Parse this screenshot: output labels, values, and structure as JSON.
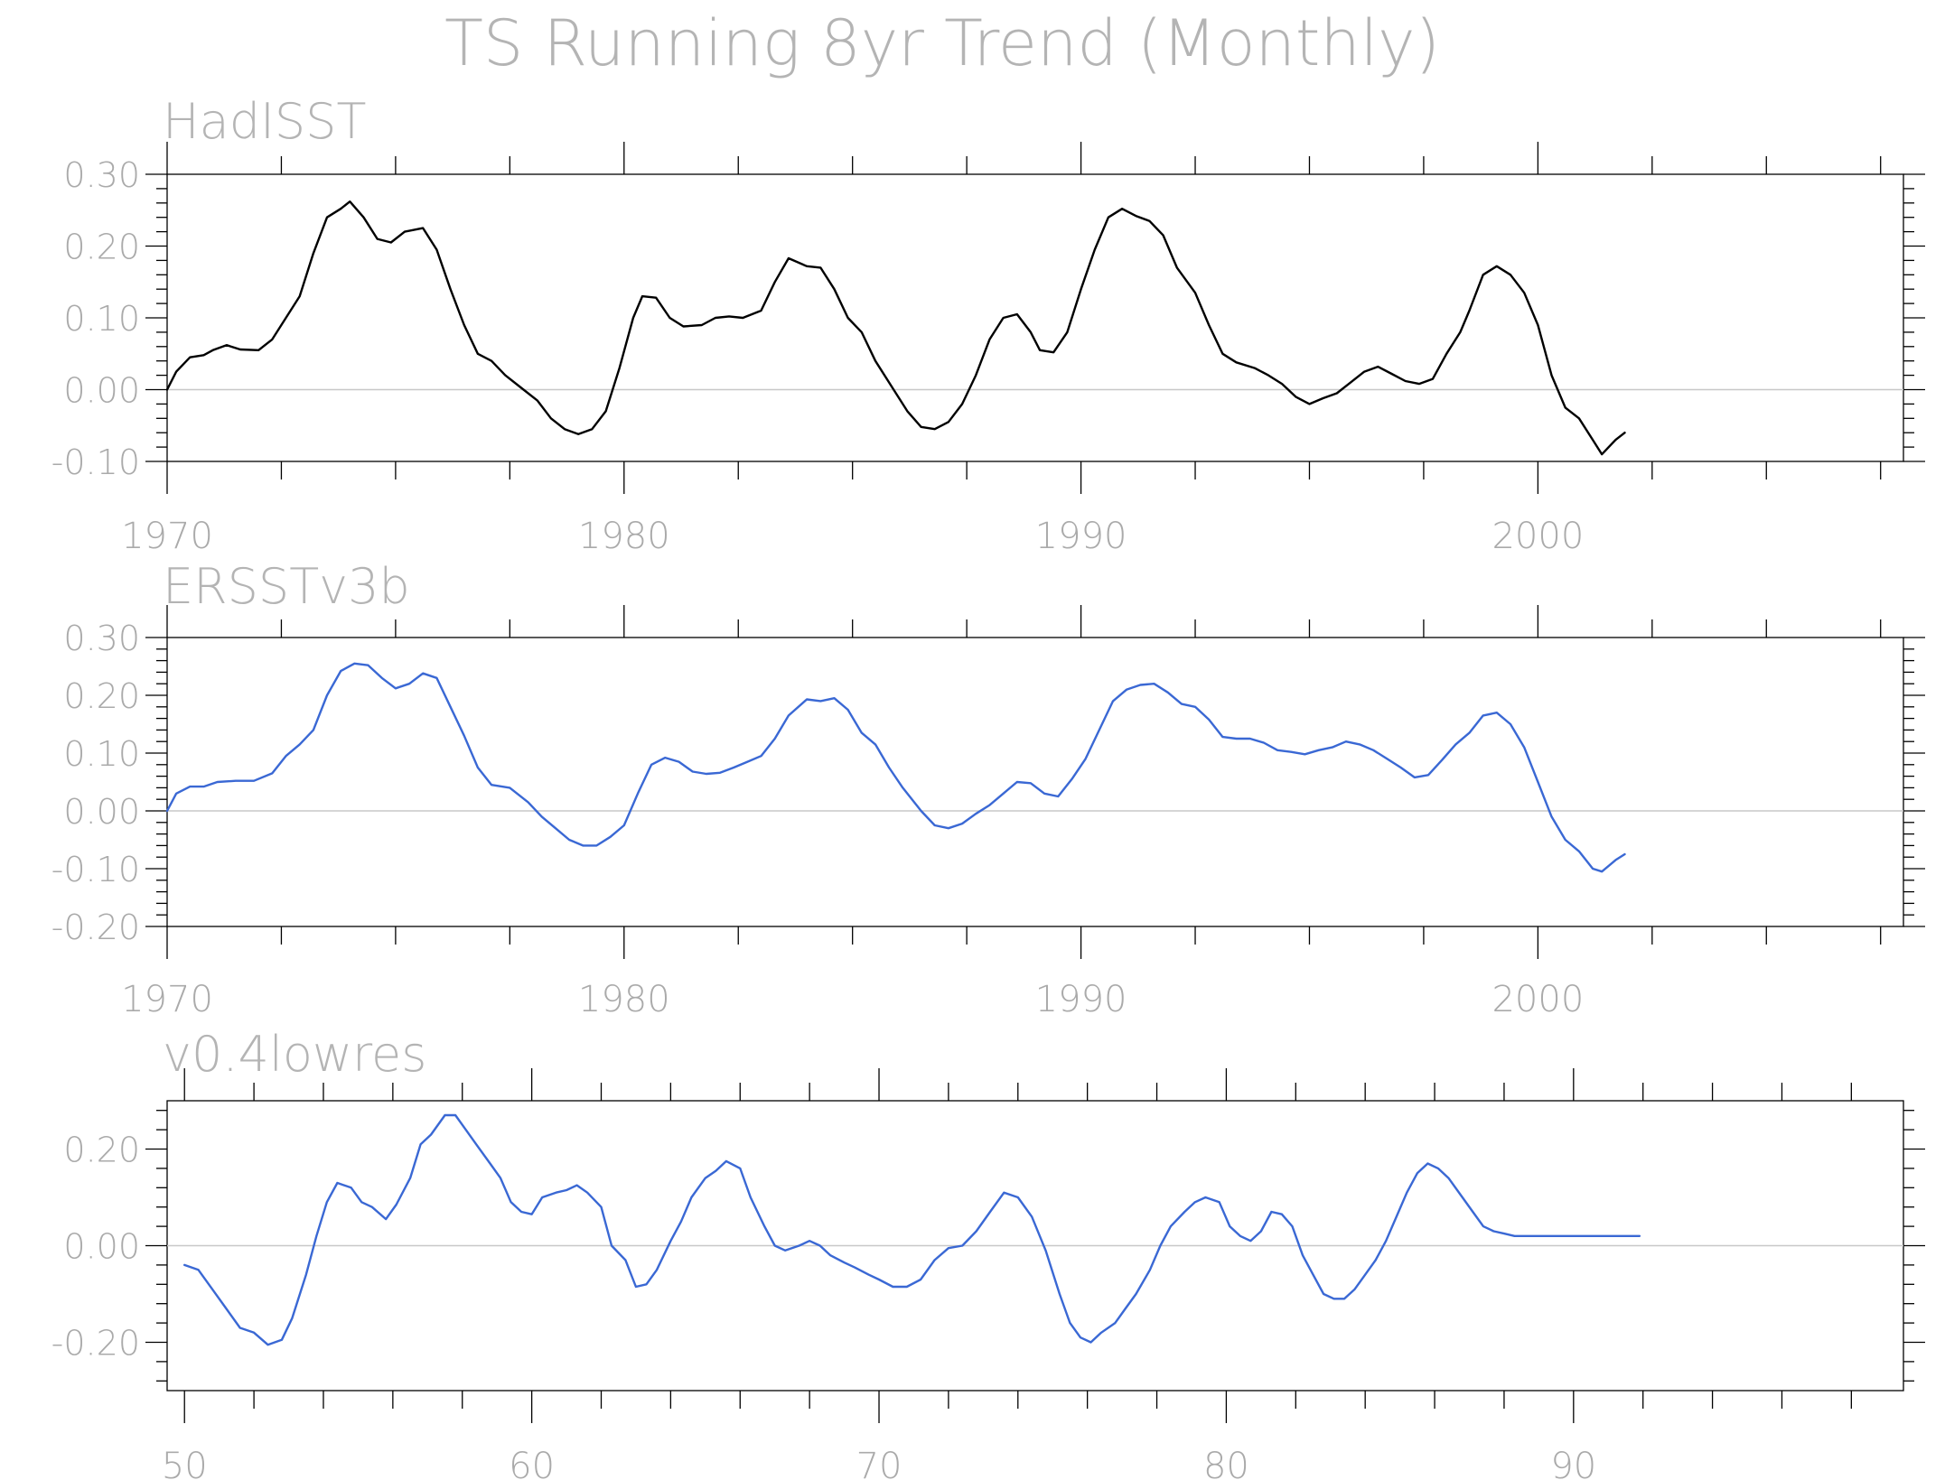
{
  "title": "TS Running 8yr Trend (Monthly)",
  "chart_data": [
    {
      "type": "line",
      "title": "HadISST",
      "color": "#000000",
      "xlim": [
        1970,
        2008
      ],
      "ylim": [
        -0.1,
        0.3
      ],
      "x_ticks": [
        1970,
        1980,
        1990,
        2000
      ],
      "x_tick_labels": [
        "1970",
        "1980",
        "1990",
        "2000"
      ],
      "y_ticks": [
        -0.1,
        0.0,
        0.1,
        0.2,
        0.3
      ],
      "y_tick_labels": [
        "-0.10",
        "0.00",
        "0.10",
        "0.20",
        "0.30"
      ],
      "series": [
        {
          "x": [
            1970.0,
            1970.2,
            1970.5,
            1970.8,
            1971.0,
            1971.3,
            1971.6,
            1972.0,
            1972.3,
            1972.6,
            1972.9,
            1973.2,
            1973.5,
            1973.8,
            1974.0,
            1974.3,
            1974.6,
            1974.9,
            1975.2,
            1975.6,
            1975.9,
            1976.2,
            1976.5,
            1976.8,
            1977.1,
            1977.4,
            1977.8,
            1978.1,
            1978.4,
            1978.7,
            1979.0,
            1979.3,
            1979.6,
            1979.9,
            1980.2,
            1980.4,
            1980.7,
            1981.0,
            1981.3,
            1981.7,
            1982.0,
            1982.3,
            1982.6,
            1983.0,
            1983.3,
            1983.6,
            1984.0,
            1984.3,
            1984.6,
            1984.9,
            1985.2,
            1985.5,
            1985.9,
            1986.2,
            1986.5,
            1986.8,
            1987.1,
            1987.4,
            1987.7,
            1988.0,
            1988.3,
            1988.6,
            1988.9,
            1989.1,
            1989.4,
            1989.7,
            1990.0,
            1990.3,
            1990.6,
            1990.9,
            1991.2,
            1991.5,
            1991.8,
            1992.1,
            1992.5,
            1992.8,
            1993.1,
            1993.4,
            1993.8,
            1994.1,
            1994.4,
            1994.7,
            1995.0,
            1995.3,
            1995.6,
            1995.9,
            1996.2,
            1996.5,
            1996.8,
            1997.1,
            1997.4,
            1997.7,
            1998.0,
            1998.3,
            1998.5,
            1998.8,
            1999.1,
            1999.4,
            1999.7,
            2000.0,
            2000.3,
            2000.6,
            2000.9,
            2001.2,
            2001.4,
            2001.7,
            2001.9
          ],
          "y": [
            0.0,
            0.025,
            0.045,
            0.048,
            0.055,
            0.062,
            0.056,
            0.055,
            0.07,
            0.1,
            0.13,
            0.19,
            0.24,
            0.252,
            0.262,
            0.24,
            0.21,
            0.205,
            0.22,
            0.225,
            0.195,
            0.14,
            0.09,
            0.05,
            0.04,
            0.02,
            0.0,
            -0.015,
            -0.04,
            -0.055,
            -0.062,
            -0.055,
            -0.03,
            0.03,
            0.1,
            0.13,
            0.128,
            0.1,
            0.088,
            0.09,
            0.1,
            0.102,
            0.1,
            0.11,
            0.15,
            0.183,
            0.172,
            0.17,
            0.14,
            0.1,
            0.08,
            0.04,
            0.0,
            -0.03,
            -0.052,
            -0.055,
            -0.045,
            -0.02,
            0.02,
            0.07,
            0.1,
            0.105,
            0.08,
            0.055,
            0.052,
            0.08,
            0.14,
            0.195,
            0.24,
            0.252,
            0.242,
            0.235,
            0.215,
            0.17,
            0.135,
            0.09,
            0.05,
            0.038,
            0.03,
            0.02,
            0.008,
            -0.01,
            -0.02,
            -0.012,
            -0.005,
            0.01,
            0.025,
            0.032,
            0.022,
            0.012,
            0.008,
            0.015,
            0.05,
            0.08,
            0.11,
            0.16,
            0.172,
            0.16,
            0.135,
            0.09,
            0.02,
            -0.025,
            -0.04,
            -0.07,
            -0.09,
            -0.07,
            -0.06
          ]
        }
      ]
    },
    {
      "type": "line",
      "title": "ERSSTv3b",
      "color": "#3a68d4",
      "xlim": [
        1970,
        2008
      ],
      "ylim": [
        -0.2,
        0.3
      ],
      "x_ticks": [
        1970,
        1980,
        1990,
        2000
      ],
      "x_tick_labels": [
        "1970",
        "1980",
        "1990",
        "2000"
      ],
      "y_ticks": [
        -0.2,
        -0.1,
        0.0,
        0.1,
        0.2,
        0.3
      ],
      "y_tick_labels": [
        "-0.20",
        "-0.10",
        "0.00",
        "0.10",
        "0.20",
        "0.30"
      ],
      "series": [
        {
          "x": [
            1970.0,
            1970.2,
            1970.5,
            1970.8,
            1971.1,
            1971.5,
            1971.9,
            1972.3,
            1972.6,
            1972.9,
            1973.2,
            1973.5,
            1973.8,
            1974.1,
            1974.4,
            1974.7,
            1975.0,
            1975.3,
            1975.6,
            1975.9,
            1976.2,
            1976.5,
            1976.8,
            1977.1,
            1977.5,
            1977.9,
            1978.2,
            1978.5,
            1978.8,
            1979.1,
            1979.4,
            1979.7,
            1980.0,
            1980.3,
            1980.6,
            1980.9,
            1981.2,
            1981.5,
            1981.8,
            1982.1,
            1982.4,
            1982.7,
            1983.0,
            1983.3,
            1983.6,
            1984.0,
            1984.3,
            1984.6,
            1984.9,
            1985.2,
            1985.5,
            1985.8,
            1986.1,
            1986.5,
            1986.8,
            1987.1,
            1987.4,
            1987.7,
            1988.0,
            1988.3,
            1988.6,
            1988.9,
            1989.2,
            1989.5,
            1989.8,
            1990.1,
            1990.4,
            1990.7,
            1991.0,
            1991.3,
            1991.6,
            1991.9,
            1992.2,
            1992.5,
            1992.8,
            1993.1,
            1993.4,
            1993.7,
            1994.0,
            1994.3,
            1994.6,
            1994.9,
            1995.2,
            1995.5,
            1995.8,
            1996.1,
            1996.4,
            1996.7,
            1997.0,
            1997.3,
            1997.6,
            1997.9,
            1998.2,
            1998.5,
            1998.8,
            1999.1,
            1999.4,
            1999.7,
            2000.0,
            2000.3,
            2000.6,
            2000.9,
            2001.2,
            2001.4,
            2001.7,
            2001.9
          ],
          "y": [
            0.0,
            0.03,
            0.042,
            0.042,
            0.05,
            0.052,
            0.052,
            0.065,
            0.095,
            0.115,
            0.14,
            0.2,
            0.242,
            0.255,
            0.252,
            0.23,
            0.212,
            0.22,
            0.238,
            0.23,
            0.18,
            0.13,
            0.075,
            0.045,
            0.04,
            0.015,
            -0.01,
            -0.03,
            -0.05,
            -0.06,
            -0.06,
            -0.045,
            -0.025,
            0.03,
            0.08,
            0.092,
            0.085,
            0.068,
            0.064,
            0.066,
            0.075,
            0.085,
            0.095,
            0.125,
            0.165,
            0.193,
            0.19,
            0.195,
            0.175,
            0.135,
            0.115,
            0.075,
            0.04,
            0.0,
            -0.025,
            -0.03,
            -0.022,
            -0.005,
            0.01,
            0.03,
            0.05,
            0.048,
            0.03,
            0.025,
            0.055,
            0.09,
            0.14,
            0.19,
            0.21,
            0.218,
            0.22,
            0.205,
            0.185,
            0.18,
            0.158,
            0.128,
            0.125,
            0.125,
            0.118,
            0.105,
            0.102,
            0.098,
            0.105,
            0.11,
            0.12,
            0.115,
            0.105,
            0.09,
            0.075,
            0.058,
            0.062,
            0.088,
            0.115,
            0.135,
            0.165,
            0.17,
            0.15,
            0.11,
            0.05,
            -0.01,
            -0.05,
            -0.07,
            -0.1,
            -0.105,
            -0.085,
            -0.075
          ]
        }
      ]
    },
    {
      "type": "line",
      "title": "v0.4lowres",
      "color": "#3a68d4",
      "xlim": [
        49.5,
        99.5
      ],
      "ylim": [
        -0.3,
        0.3
      ],
      "x_ticks": [
        50,
        60,
        70,
        80,
        90
      ],
      "x_tick_labels": [
        "50",
        "60",
        "70",
        "80",
        "90"
      ],
      "y_ticks": [
        -0.2,
        0.0,
        0.2
      ],
      "y_tick_labels": [
        "-0.20",
        "0.00",
        "0.20"
      ],
      "series": [
        {
          "x": [
            50.0,
            50.4,
            50.8,
            51.2,
            51.6,
            52.0,
            52.4,
            52.8,
            53.1,
            53.5,
            53.8,
            54.1,
            54.4,
            54.8,
            55.1,
            55.4,
            55.8,
            56.1,
            56.5,
            56.8,
            57.1,
            57.5,
            57.8,
            58.1,
            58.4,
            58.8,
            59.1,
            59.4,
            59.7,
            60.0,
            60.3,
            60.7,
            61.0,
            61.3,
            61.6,
            62.0,
            62.3,
            62.7,
            63.0,
            63.3,
            63.6,
            64.0,
            64.3,
            64.6,
            65.0,
            65.3,
            65.6,
            66.0,
            66.3,
            66.7,
            67.0,
            67.3,
            67.7,
            68.0,
            68.3,
            68.6,
            69.0,
            69.3,
            69.7,
            70.0,
            70.4,
            70.8,
            71.2,
            71.6,
            72.0,
            72.4,
            72.8,
            73.2,
            73.6,
            74.0,
            74.4,
            74.8,
            75.2,
            75.5,
            75.8,
            76.1,
            76.4,
            76.8,
            77.1,
            77.4,
            77.8,
            78.1,
            78.4,
            78.8,
            79.1,
            79.4,
            79.8,
            80.1,
            80.4,
            80.7,
            81.0,
            81.3,
            81.6,
            81.9,
            82.2,
            82.5,
            82.8,
            83.1,
            83.4,
            83.7,
            84.0,
            84.3,
            84.6,
            84.9,
            85.2,
            85.5,
            85.8,
            86.1,
            86.4,
            86.8,
            87.1,
            87.4,
            87.7,
            88.0,
            88.3,
            88.6,
            88.9,
            89.2,
            89.5,
            89.8,
            90.1,
            90.4,
            90.7,
            91.0,
            91.3,
            91.6,
            91.9
          ],
          "y": [
            -0.04,
            -0.05,
            -0.09,
            -0.13,
            -0.17,
            -0.18,
            -0.205,
            -0.195,
            -0.15,
            -0.06,
            0.02,
            0.09,
            0.13,
            0.12,
            0.09,
            0.08,
            0.055,
            0.085,
            0.14,
            0.21,
            0.23,
            0.27,
            0.27,
            0.24,
            0.21,
            0.17,
            0.14,
            0.09,
            0.07,
            0.065,
            0.1,
            0.11,
            0.115,
            0.125,
            0.11,
            0.08,
            0.0,
            -0.03,
            -0.085,
            -0.08,
            -0.05,
            0.01,
            0.05,
            0.1,
            0.14,
            0.155,
            0.175,
            0.16,
            0.1,
            0.04,
            0.0,
            -0.01,
            0.0,
            0.01,
            0.0,
            -0.02,
            -0.035,
            -0.045,
            -0.06,
            -0.07,
            -0.085,
            -0.085,
            -0.07,
            -0.03,
            -0.005,
            0.0,
            0.03,
            0.07,
            0.11,
            0.1,
            0.06,
            -0.01,
            -0.1,
            -0.16,
            -0.19,
            -0.2,
            -0.18,
            -0.16,
            -0.13,
            -0.1,
            -0.05,
            0.0,
            0.04,
            0.07,
            0.09,
            0.1,
            0.09,
            0.04,
            0.02,
            0.01,
            0.03,
            0.07,
            0.065,
            0.04,
            -0.02,
            -0.06,
            -0.1,
            -0.11,
            -0.11,
            -0.09,
            -0.06,
            -0.03,
            0.01,
            0.06,
            0.11,
            0.15,
            0.17,
            0.16,
            0.14,
            0.1,
            0.07,
            0.04,
            0.03,
            0.025,
            0.02,
            0.02,
            0.02,
            0.02,
            0.02,
            0.02,
            0.02,
            0.02,
            0.02,
            0.02,
            0.02,
            0.02,
            0.02
          ]
        }
      ]
    }
  ]
}
